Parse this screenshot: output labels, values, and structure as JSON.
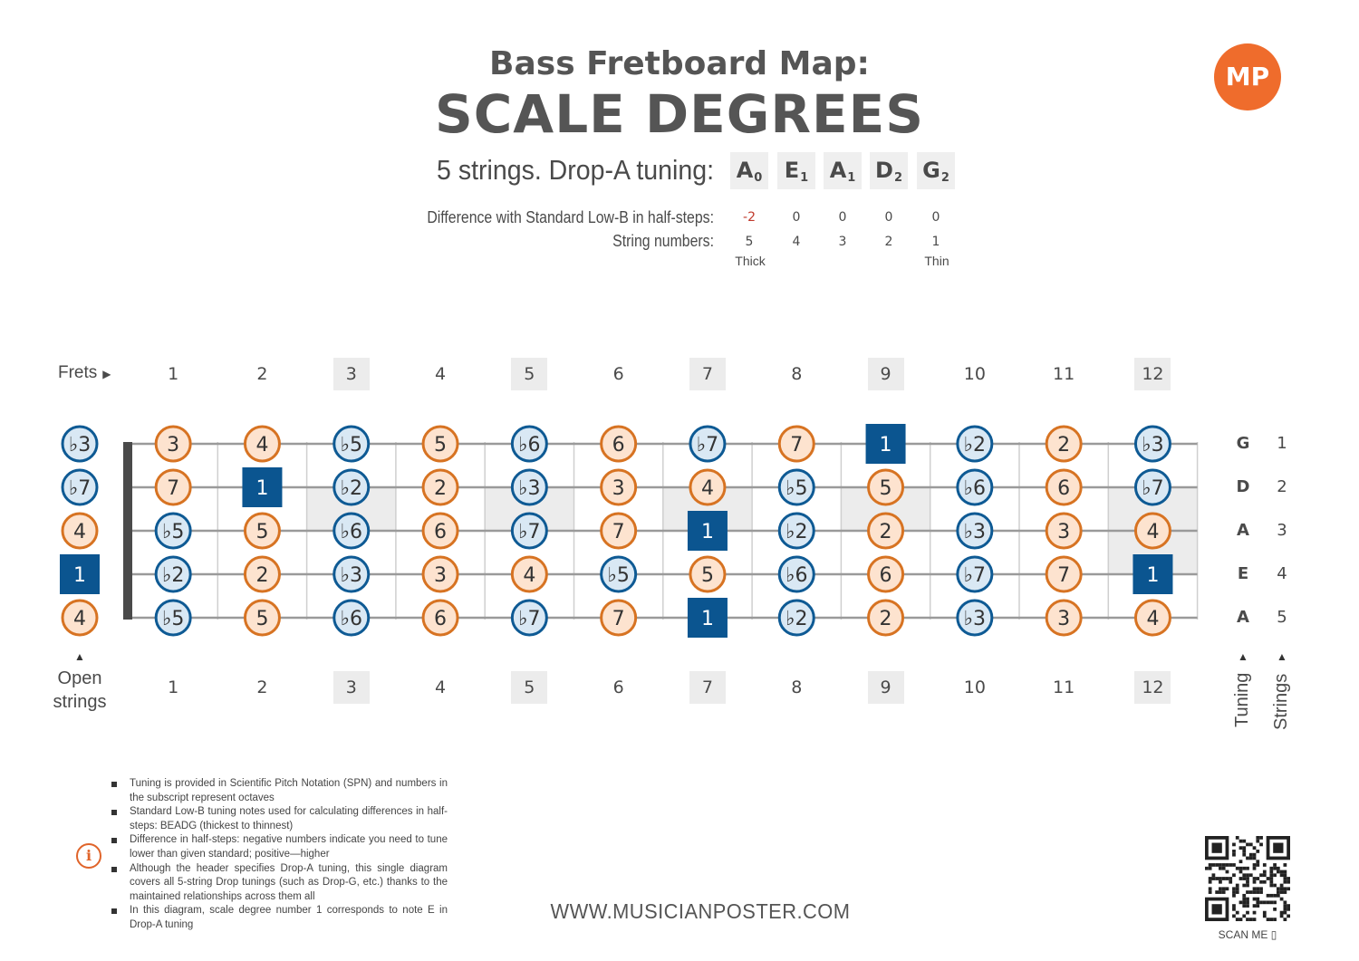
{
  "header": {
    "title_top": "Bass Fretboard Map:",
    "title_main": "SCALE DEGREES",
    "logo_text": "MP",
    "tuning_caption": "5 strings. Drop-A tuning:",
    "tuning_notes": [
      {
        "note": "A",
        "octave": "0"
      },
      {
        "note": "E",
        "octave": "1"
      },
      {
        "note": "A",
        "octave": "1"
      },
      {
        "note": "D",
        "octave": "2"
      },
      {
        "note": "G",
        "octave": "2"
      }
    ],
    "difference_label": "Difference with Standard Low-B in half-steps:",
    "differences": [
      "-2",
      "0",
      "0",
      "0",
      "0"
    ],
    "string_numbers_label": "String numbers:",
    "string_numbers": [
      "5",
      "4",
      "3",
      "2",
      "1"
    ],
    "thick_label": "Thick",
    "thin_label": "Thin"
  },
  "fretboard": {
    "frets_label": "Frets",
    "fret_numbers": [
      "1",
      "2",
      "3",
      "4",
      "5",
      "6",
      "7",
      "8",
      "9",
      "10",
      "11",
      "12"
    ],
    "inlay_frets": [
      3,
      5,
      7,
      9,
      12
    ],
    "double_inlay_fret": 12,
    "open_strings_label_line1": "Open",
    "open_strings_label_line2": "strings",
    "tuning_side_label": "Tuning",
    "strings_side_label": "Strings",
    "colors": {
      "natural_fill": "#fde3cf",
      "natural_border": "#d77322",
      "flat_fill": "#d9e8f4",
      "flat_border": "#0e5a94",
      "root_fill": "#0b5590",
      "board_line": "#9a9a9a",
      "inlay_fill": "#ececec",
      "nut": "#4a4a4a"
    },
    "strings": [
      {
        "letter": "G",
        "number": "1",
        "open": "b3",
        "frets": [
          "3",
          "4",
          "b5",
          "5",
          "b6",
          "6",
          "b7",
          "7",
          "1",
          "b2",
          "2",
          "b3"
        ]
      },
      {
        "letter": "D",
        "number": "2",
        "open": "b7",
        "frets": [
          "7",
          "1",
          "b2",
          "2",
          "b3",
          "3",
          "4",
          "b5",
          "5",
          "b6",
          "6",
          "b7"
        ]
      },
      {
        "letter": "A",
        "number": "3",
        "open": "4",
        "frets": [
          "b5",
          "5",
          "b6",
          "6",
          "b7",
          "7",
          "1",
          "b2",
          "2",
          "b3",
          "3",
          "4"
        ]
      },
      {
        "letter": "E",
        "number": "4",
        "open": "1",
        "frets": [
          "b2",
          "2",
          "b3",
          "3",
          "4",
          "b5",
          "5",
          "b6",
          "6",
          "b7",
          "7",
          "1"
        ]
      },
      {
        "letter": "A",
        "number": "5",
        "open": "4",
        "frets": [
          "b5",
          "5",
          "b6",
          "6",
          "b7",
          "7",
          "1",
          "b2",
          "2",
          "b3",
          "3",
          "4"
        ]
      }
    ]
  },
  "notes": [
    "Tuning is provided in Scientific Pitch Notation (SPN) and numbers in the subscript represent octaves",
    "Standard Low-B tuning notes used for calculating differences in half-steps: BEADG (thickest to thinnest)",
    "Difference in half-steps: negative numbers indicate you need to tune lower than given standard; positive—higher",
    "Although the header specifies Drop-A tuning, this single diagram covers all 5-string Drop tunings (such as Drop-G, etc.) thanks to the maintained relationships across them all",
    "In this diagram, scale degree number 1 corresponds to note E in Drop-A tuning"
  ],
  "footer": {
    "website": "WWW.MUSICIANPOSTER.COM",
    "scan_me": "SCAN ME"
  }
}
